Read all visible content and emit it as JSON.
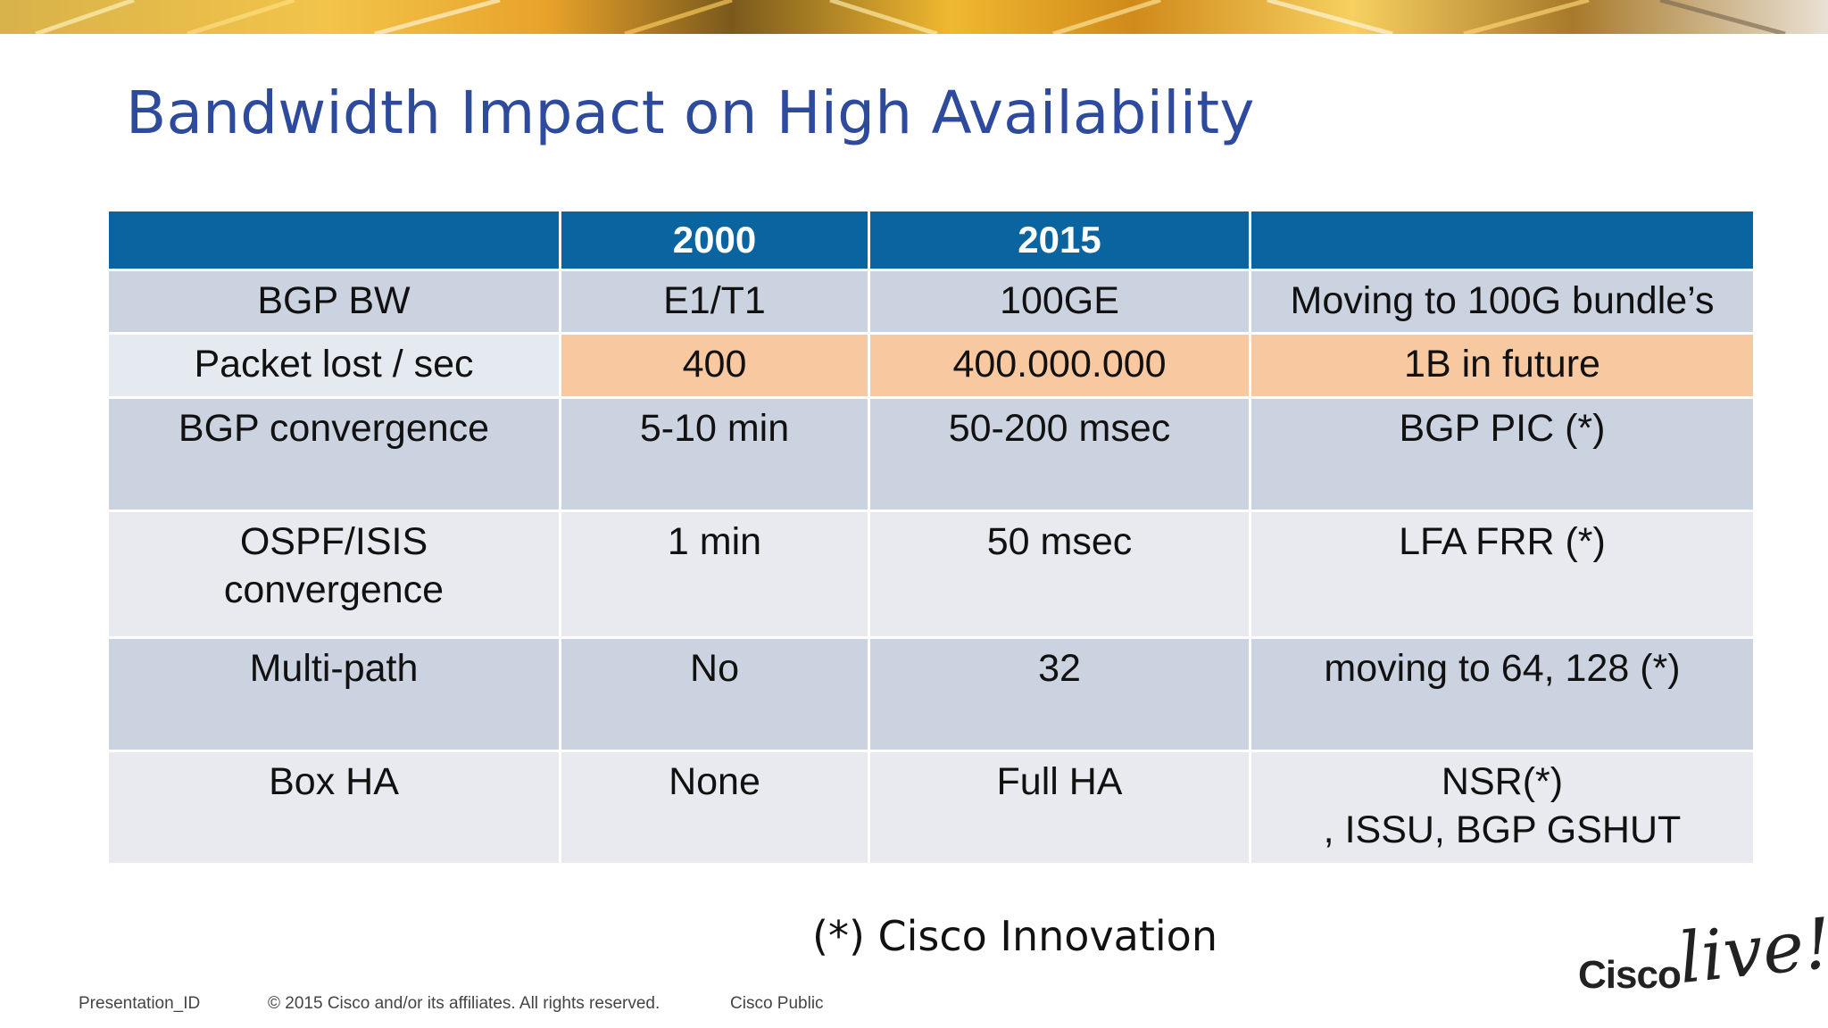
{
  "slide": {
    "title": "Bandwidth Impact on High Availability",
    "note": "(*) Cisco Innovation"
  },
  "table": {
    "headers": [
      "",
      "2000",
      "2015",
      ""
    ],
    "rows": [
      {
        "cells": [
          "BGP BW",
          "E1/T1",
          "100GE",
          "Moving to 100G bundle’s"
        ]
      },
      {
        "cells": [
          "Packet lost / sec",
          "400",
          "400.000.000",
          "1B in future"
        ]
      },
      {
        "cells": [
          "BGP convergence",
          "5-10 min",
          "50-200 msec",
          "BGP PIC (*)"
        ]
      },
      {
        "cells": [
          "OSPF/ISIS\nconvergence",
          "1 min",
          "50 msec",
          "LFA FRR (*)"
        ]
      },
      {
        "cells": [
          "Multi-path",
          "No",
          "32",
          "moving to 64, 128 (*)"
        ]
      },
      {
        "cells": [
          "Box HA",
          "None",
          "Full HA",
          "NSR(*)\n, ISSU, BGP GSHUT"
        ]
      }
    ]
  },
  "footer": {
    "presentation_id": "Presentation_ID",
    "copyright": "© 2015 Cisco and/or its affiliates. All rights reserved.",
    "classification": "Cisco Public"
  },
  "logo": {
    "brand": "Cisco",
    "event": "live!"
  },
  "colors": {
    "title": "#2e4a9c",
    "header_bg": "#0a64a0",
    "row_dark": "#ccd3e0",
    "row_light": "#e8eaef",
    "row_highlight": "#f8c8a0"
  }
}
